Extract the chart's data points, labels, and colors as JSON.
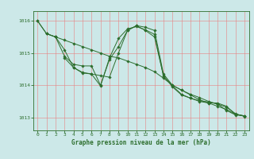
{
  "title": "Graphe pression niveau de la mer (hPa)",
  "background_color": "#cce8e8",
  "grid_color": "#e88080",
  "line_color": "#2d6e2d",
  "axis_color": "#2d6e2d",
  "xlim": [
    -0.5,
    23.5
  ],
  "ylim": [
    1012.6,
    1016.3
  ],
  "yticks": [
    1013,
    1014,
    1015,
    1016
  ],
  "xticks": [
    0,
    1,
    2,
    3,
    4,
    5,
    6,
    7,
    8,
    9,
    10,
    11,
    12,
    13,
    14,
    15,
    16,
    17,
    18,
    19,
    20,
    21,
    22,
    23
  ],
  "series": [
    {
      "x": [
        0,
        1,
        2,
        3,
        4,
        5,
        6,
        7,
        8,
        9,
        10,
        11,
        12,
        13,
        14,
        15,
        16,
        17,
        18,
        19,
        20,
        21,
        22,
        23
      ],
      "y": [
        1016.0,
        1015.6,
        1015.5,
        1014.9,
        1014.65,
        1014.6,
        1014.6,
        1014.0,
        1014.8,
        1015.2,
        1015.7,
        1015.85,
        1015.8,
        1015.7,
        1014.35,
        1014.0,
        1013.85,
        1013.7,
        1013.55,
        1013.45,
        1013.45,
        1013.35,
        1013.1,
        1013.05
      ]
    },
    {
      "x": [
        0,
        1,
        2,
        3,
        4,
        5,
        6,
        7,
        8,
        9,
        10,
        11,
        12,
        13,
        14,
        15,
        16,
        17,
        18,
        19,
        20,
        21,
        22,
        23
      ],
      "y": [
        1016.0,
        1015.6,
        1015.5,
        1015.4,
        1015.3,
        1015.2,
        1015.1,
        1015.0,
        1014.9,
        1014.85,
        1014.75,
        1014.65,
        1014.55,
        1014.42,
        1014.22,
        1014.0,
        1013.85,
        1013.72,
        1013.62,
        1013.5,
        1013.42,
        1013.22,
        1013.08,
        1013.05
      ]
    },
    {
      "x": [
        1,
        2,
        3,
        4,
        5,
        6,
        7,
        8,
        9,
        10,
        11,
        12,
        13,
        14,
        15,
        16,
        17,
        18,
        19,
        20,
        21,
        22,
        23
      ],
      "y": [
        1015.6,
        1015.5,
        1015.1,
        1014.55,
        1014.4,
        1014.35,
        1014.3,
        1014.25,
        1015.0,
        1015.7,
        1015.85,
        1015.7,
        1015.5,
        1014.3,
        1013.95,
        1013.7,
        1013.6,
        1013.5,
        1013.45,
        1013.35,
        1013.25,
        1013.1,
        1013.05
      ]
    },
    {
      "x": [
        3,
        4,
        5,
        6,
        7,
        8,
        9,
        10,
        11,
        12,
        13,
        14,
        15,
        16,
        17,
        18,
        19,
        20,
        21,
        22,
        23
      ],
      "y": [
        1014.85,
        1014.55,
        1014.38,
        1014.35,
        1013.98,
        1014.85,
        1015.45,
        1015.75,
        1015.82,
        1015.72,
        1015.58,
        1014.28,
        1013.98,
        1013.72,
        1013.6,
        1013.52,
        1013.48,
        1013.42,
        1013.32,
        1013.12,
        1013.03
      ]
    }
  ]
}
